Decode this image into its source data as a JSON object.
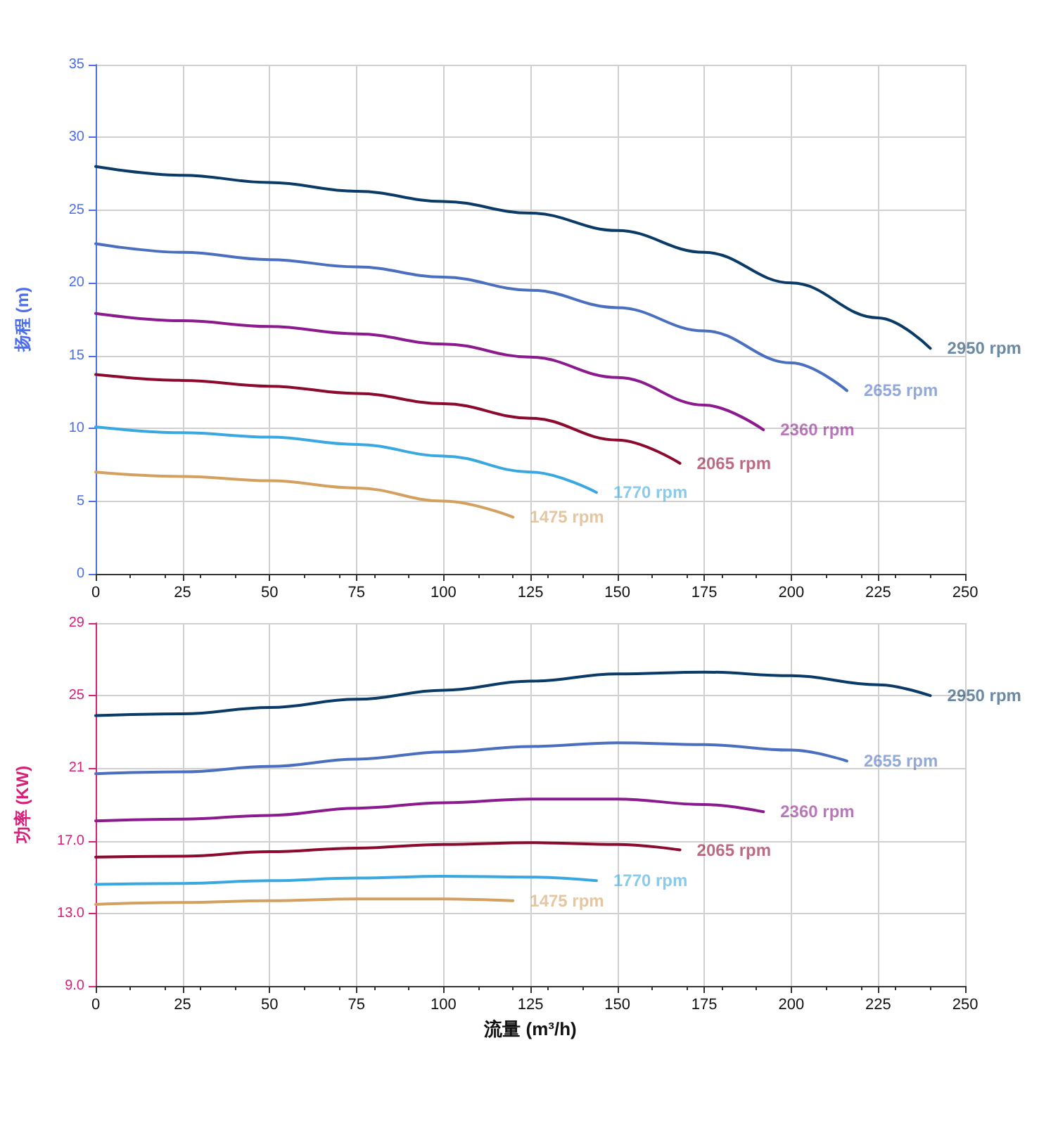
{
  "chart_data": [
    {
      "type": "line",
      "ylabel": "扬程 (m)",
      "xlim": [
        0,
        250
      ],
      "xticks": [
        0,
        25,
        50,
        75,
        100,
        125,
        150,
        175,
        200,
        225,
        250
      ],
      "ylim": [
        0,
        35
      ],
      "yticks": [
        0,
        5,
        10,
        15,
        20,
        25,
        30,
        35
      ],
      "grid": true,
      "legend": false,
      "marker": "none",
      "line_style": "solid",
      "series": [
        {
          "name": "2950 rpm",
          "color": "#0a3a66",
          "x": [
            0,
            25,
            50,
            75,
            100,
            125,
            150,
            175,
            200,
            225,
            240
          ],
          "values": [
            28,
            27.4,
            26.9,
            26.3,
            25.6,
            24.8,
            23.6,
            22.1,
            20.0,
            17.6,
            15.5
          ]
        },
        {
          "name": "2655 rpm",
          "color": "#4a6fbf",
          "x": [
            0,
            25,
            50,
            75,
            100,
            125,
            150,
            175,
            200,
            216
          ],
          "values": [
            22.7,
            22.1,
            21.6,
            21.1,
            20.4,
            19.5,
            18.3,
            16.7,
            14.5,
            12.6
          ]
        },
        {
          "name": "2360 rpm",
          "color": "#8b1a8e",
          "x": [
            0,
            25,
            50,
            75,
            100,
            125,
            150,
            175,
            192
          ],
          "values": [
            17.9,
            17.4,
            17.0,
            16.5,
            15.8,
            14.9,
            13.5,
            11.6,
            9.9
          ]
        },
        {
          "name": "2065 rpm",
          "color": "#8b0a2e",
          "x": [
            0,
            25,
            50,
            75,
            100,
            125,
            150,
            168
          ],
          "values": [
            13.7,
            13.3,
            12.9,
            12.4,
            11.7,
            10.7,
            9.2,
            7.6
          ]
        },
        {
          "name": "1770 rpm",
          "color": "#3aa8e0",
          "x": [
            0,
            25,
            50,
            75,
            100,
            125,
            144
          ],
          "values": [
            10.1,
            9.7,
            9.4,
            8.9,
            8.1,
            7.0,
            5.6
          ]
        },
        {
          "name": "1475 rpm",
          "color": "#d4a060",
          "x": [
            0,
            25,
            50,
            75,
            100,
            120
          ],
          "values": [
            7.0,
            6.7,
            6.4,
            5.9,
            5.0,
            3.9
          ]
        }
      ]
    },
    {
      "type": "line",
      "xlabel": "流量 (m³/h)",
      "ylabel": "功率 (KW)",
      "xlim": [
        0,
        250
      ],
      "xticks": [
        0,
        25,
        50,
        75,
        100,
        125,
        150,
        175,
        200,
        225,
        250
      ],
      "ylim": [
        9,
        29
      ],
      "yticks": [
        {
          "value": 9,
          "label": "9.0"
        },
        {
          "value": 13,
          "label": "13.0"
        },
        {
          "value": 17,
          "label": "17.0"
        },
        21,
        25,
        29
      ],
      "grid": true,
      "legend": false,
      "marker": "none",
      "line_style": "solid",
      "series": [
        {
          "name": "2950 rpm",
          "color": "#0a3a66",
          "x": [
            0,
            25,
            50,
            75,
            100,
            125,
            150,
            175,
            200,
            225,
            240
          ],
          "values": [
            23.9,
            24.0,
            24.35,
            24.8,
            25.3,
            25.8,
            26.2,
            26.3,
            26.1,
            25.6,
            25.0
          ]
        },
        {
          "name": "2655 rpm",
          "color": "#4a6fbf",
          "x": [
            0,
            25,
            50,
            75,
            100,
            125,
            150,
            175,
            200,
            216
          ],
          "values": [
            20.7,
            20.8,
            21.1,
            21.5,
            21.9,
            22.2,
            22.4,
            22.3,
            22.0,
            21.4
          ]
        },
        {
          "name": "2360 rpm",
          "color": "#8b1a8e",
          "x": [
            0,
            25,
            50,
            75,
            100,
            125,
            150,
            175,
            192
          ],
          "values": [
            18.1,
            18.2,
            18.4,
            18.8,
            19.1,
            19.3,
            19.3,
            19.0,
            18.6
          ]
        },
        {
          "name": "2065 rpm",
          "color": "#8b0a2e",
          "x": [
            0,
            25,
            50,
            75,
            100,
            125,
            150,
            168
          ],
          "values": [
            16.1,
            16.15,
            16.4,
            16.6,
            16.8,
            16.9,
            16.8,
            16.5
          ]
        },
        {
          "name": "1770 rpm",
          "color": "#3aa8e0",
          "x": [
            0,
            25,
            50,
            75,
            100,
            125,
            144
          ],
          "values": [
            14.6,
            14.65,
            14.8,
            14.95,
            15.05,
            15.0,
            14.8
          ]
        },
        {
          "name": "1475 rpm",
          "color": "#d4a060",
          "x": [
            0,
            25,
            50,
            75,
            100,
            120
          ],
          "values": [
            13.5,
            13.6,
            13.7,
            13.8,
            13.8,
            13.7
          ]
        }
      ]
    }
  ]
}
